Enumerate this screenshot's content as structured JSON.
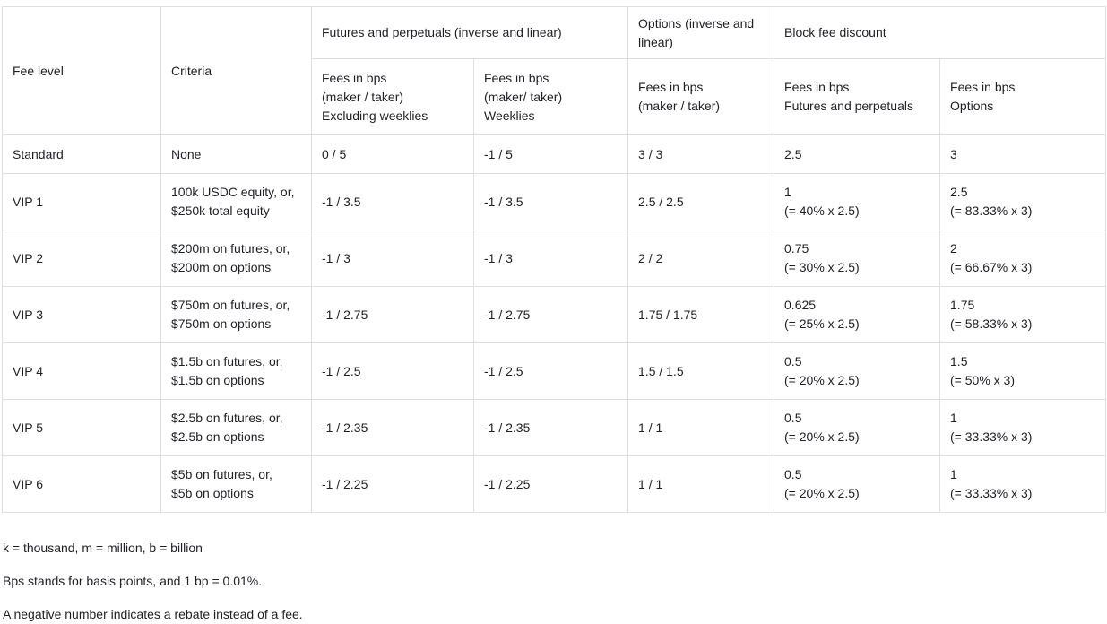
{
  "table": {
    "header": {
      "fee_level": "Fee level",
      "criteria": "Criteria",
      "futures_group": "Futures and perpetuals (inverse and linear)",
      "options_group": "Options (inverse and linear)",
      "block_group": "Block fee discount",
      "sub": {
        "futures_excl": [
          "Fees in bps",
          "(maker / taker)",
          "Excluding weeklies"
        ],
        "futures_weekly": [
          "Fees in bps",
          "(maker/ taker)",
          "Weeklies"
        ],
        "options_fees": [
          "Fees in bps",
          "(maker / taker)"
        ],
        "block_futures": [
          "Fees in bps",
          "Futures and perpetuals"
        ],
        "block_options": [
          "Fees in bps",
          "Options"
        ]
      }
    },
    "rows": [
      {
        "level": "Standard",
        "criteria": [
          "None"
        ],
        "futures_excl": "0 / 5",
        "futures_weekly": "-1 / 5",
        "options": "3 / 3",
        "block_futures": [
          "2.5"
        ],
        "block_options": [
          "3"
        ]
      },
      {
        "level": "VIP 1",
        "criteria": [
          "100k USDC equity, or,",
          "$250k total equity"
        ],
        "futures_excl": "-1 / 3.5",
        "futures_weekly": "-1 / 3.5",
        "options": "2.5 / 2.5",
        "block_futures": [
          "1",
          "(= 40% x 2.5)"
        ],
        "block_options": [
          "2.5",
          "(= 83.33% x 3)"
        ]
      },
      {
        "level": "VIP 2",
        "criteria": [
          "$200m on futures, or,",
          "$200m on options"
        ],
        "futures_excl": "-1 / 3",
        "futures_weekly": "-1 / 3",
        "options": "2 / 2",
        "block_futures": [
          "0.75",
          "(= 30% x 2.5)"
        ],
        "block_options": [
          "2",
          "(= 66.67% x 3)"
        ]
      },
      {
        "level": "VIP 3",
        "criteria": [
          "$750m on futures, or,",
          "$750m on options"
        ],
        "futures_excl": "-1 / 2.75",
        "futures_weekly": "-1 / 2.75",
        "options": "1.75 / 1.75",
        "block_futures": [
          "0.625",
          "(= 25% x 2.5)"
        ],
        "block_options": [
          "1.75",
          "(= 58.33% x 3)"
        ]
      },
      {
        "level": "VIP 4",
        "criteria": [
          "$1.5b on futures, or,",
          "$1.5b on options"
        ],
        "futures_excl": "-1 / 2.5",
        "futures_weekly": "-1 / 2.5",
        "options": "1.5 / 1.5",
        "block_futures": [
          "0.5",
          "(= 20% x 2.5)"
        ],
        "block_options": [
          "1.5",
          "(= 50% x 3)"
        ]
      },
      {
        "level": "VIP 5",
        "criteria": [
          "$2.5b on futures, or,",
          "$2.5b on options"
        ],
        "futures_excl": "-1 / 2.35",
        "futures_weekly": "-1 / 2.35",
        "options": "1 / 1",
        "block_futures": [
          "0.5",
          "(= 20% x 2.5)"
        ],
        "block_options": [
          "1",
          "(= 33.33% x 3)"
        ]
      },
      {
        "level": "VIP 6",
        "criteria": [
          "$5b on futures, or,",
          "$5b on options"
        ],
        "futures_excl": "-1 / 2.25",
        "futures_weekly": "-1 / 2.25",
        "options": "1 / 1",
        "block_futures": [
          "0.5",
          "(= 20% x 2.5)"
        ],
        "block_options": [
          "1",
          "(= 33.33% x 3)"
        ]
      }
    ]
  },
  "notes": [
    "k = thousand, m = million, b = billion",
    "Bps stands for basis points, and 1 bp = 0.01%.",
    "A negative number indicates a rebate instead of a fee."
  ],
  "colors": {
    "border": "#dddfe2",
    "text": "#1d2025",
    "background": "#ffffff"
  }
}
